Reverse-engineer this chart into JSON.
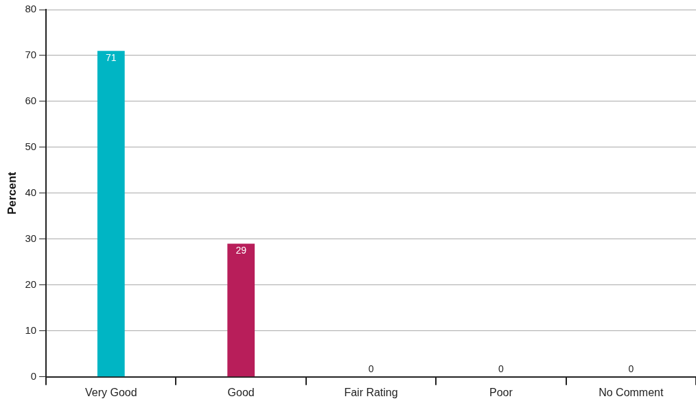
{
  "chart_data": {
    "type": "bar",
    "ylabel": "Percent",
    "categories": [
      "Very Good",
      "Good",
      "Fair Rating",
      "Poor",
      "No Comment"
    ],
    "values": [
      71,
      29,
      0,
      0,
      0
    ],
    "colors": [
      "#00b5c4",
      "#b81e5a",
      "#00b5c4",
      "#b81e5a",
      "#00b5c4"
    ],
    "ylim": [
      0,
      80
    ],
    "yticks": [
      0,
      10,
      20,
      30,
      40,
      50,
      60,
      70,
      80
    ],
    "grid": "y",
    "legend": false,
    "data_labels": true
  }
}
